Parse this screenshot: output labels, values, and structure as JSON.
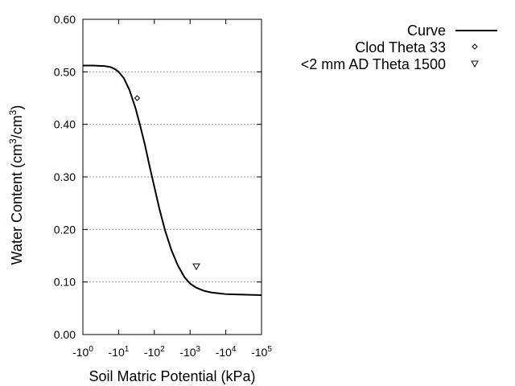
{
  "chart_data": {
    "type": "scatter",
    "xlabel": "Soil Matric Potential (kPa)",
    "ylabel": "Water Content (cm³/cm³)",
    "ylabel_parts": {
      "pre": "Water Content (cm",
      "sup1": "3",
      "mid": "/cm",
      "sup2": "3",
      "post": ")"
    },
    "x_scale": "log",
    "xlim": [
      1,
      100000
    ],
    "ylim": [
      0.0,
      0.6
    ],
    "grid": "horizontal dotted",
    "legend_position": "top-right",
    "y_ticks": [
      "0.00",
      "0.10",
      "0.20",
      "0.30",
      "0.40",
      "0.50",
      "0.60"
    ],
    "x_ticks": [
      {
        "base": "-10",
        "exp": "0"
      },
      {
        "base": "-10",
        "exp": "1"
      },
      {
        "base": "-10",
        "exp": "2"
      },
      {
        "base": "-10",
        "exp": "3"
      },
      {
        "base": "-10",
        "exp": "4"
      },
      {
        "base": "-10",
        "exp": "5"
      }
    ],
    "series": [
      {
        "name": "Curve",
        "type": "line",
        "theta_r": 0.075,
        "theta_s": 0.512,
        "points": [
          [
            1,
            0.512
          ],
          [
            2,
            0.512
          ],
          [
            4,
            0.511
          ],
          [
            6,
            0.509
          ],
          [
            8,
            0.505
          ],
          [
            10,
            0.5
          ],
          [
            14,
            0.488
          ],
          [
            20,
            0.466
          ],
          [
            30,
            0.43
          ],
          [
            40,
            0.398
          ],
          [
            55,
            0.36
          ],
          [
            75,
            0.318
          ],
          [
            100,
            0.281
          ],
          [
            140,
            0.238
          ],
          [
            200,
            0.198
          ],
          [
            300,
            0.161
          ],
          [
            450,
            0.132
          ],
          [
            700,
            0.109
          ],
          [
            1000,
            0.097
          ],
          [
            1500,
            0.089
          ],
          [
            2500,
            0.083
          ],
          [
            4000,
            0.08
          ],
          [
            7000,
            0.078
          ],
          [
            10000,
            0.077
          ],
          [
            30000,
            0.076
          ],
          [
            100000,
            0.075
          ]
        ]
      },
      {
        "name": "Clod Theta 33",
        "type": "scatter",
        "marker": "diamond",
        "points": [
          [
            33,
            0.45
          ]
        ]
      },
      {
        "name": "<2 mm AD Theta 1500",
        "type": "scatter",
        "marker": "triangle-down",
        "points": [
          [
            1500,
            0.13
          ]
        ]
      }
    ]
  }
}
